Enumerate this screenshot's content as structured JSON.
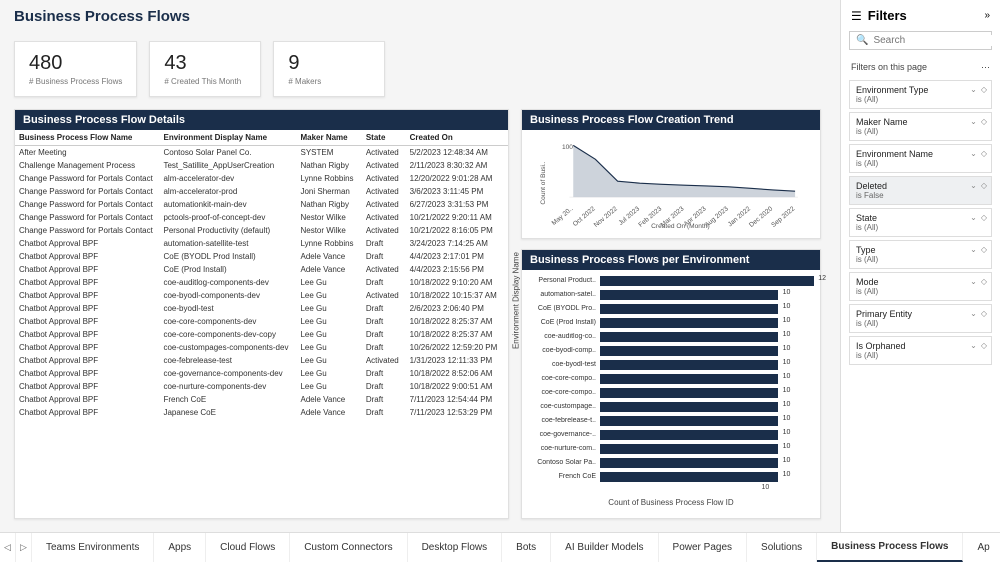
{
  "page_title": "Business Process Flows",
  "kpis": [
    {
      "value": "480",
      "label": "# Business Process Flows"
    },
    {
      "value": "43",
      "label": "# Created This Month"
    },
    {
      "value": "9",
      "label": "# Makers"
    }
  ],
  "details": {
    "title": "Business Process Flow Details",
    "columns": [
      "Business Process Flow Name",
      "Environment Display Name",
      "Maker Name",
      "State",
      "Created On"
    ],
    "rows": [
      [
        "After Meeting",
        "Contoso Solar Panel Co.",
        "SYSTEM",
        "Activated",
        "5/2/2023 12:48:34 AM"
      ],
      [
        "Challenge Management Process",
        "Test_Satillite_AppUserCreation",
        "Nathan Rigby",
        "Activated",
        "2/11/2023 8:30:32 AM"
      ],
      [
        "Change Password for Portals Contact",
        "alm-accelerator-dev",
        "Lynne Robbins",
        "Activated",
        "12/20/2022 9:01:28 AM"
      ],
      [
        "Change Password for Portals Contact",
        "alm-accelerator-prod",
        "Joni Sherman",
        "Activated",
        "3/6/2023 3:11:45 PM"
      ],
      [
        "Change Password for Portals Contact",
        "automationkit-main-dev",
        "Nathan Rigby",
        "Activated",
        "6/27/2023 3:31:53 PM"
      ],
      [
        "Change Password for Portals Contact",
        "pctools-proof-of-concept-dev",
        "Nestor Wilke",
        "Activated",
        "10/21/2022 9:20:11 AM"
      ],
      [
        "Change Password for Portals Contact",
        "Personal Productivity (default)",
        "Nestor Wilke",
        "Activated",
        "10/21/2022 8:16:05 PM"
      ],
      [
        "Chatbot Approval BPF",
        "automation-satellite-test",
        "Lynne Robbins",
        "Draft",
        "3/24/2023 7:14:25 AM"
      ],
      [
        "Chatbot Approval BPF",
        "CoE (BYODL Prod Install)",
        "Adele Vance",
        "Draft",
        "4/4/2023 2:17:01 PM"
      ],
      [
        "Chatbot Approval BPF",
        "CoE (Prod Install)",
        "Adele Vance",
        "Activated",
        "4/4/2023 2:15:56 PM"
      ],
      [
        "Chatbot Approval BPF",
        "coe-auditlog-components-dev",
        "Lee Gu",
        "Draft",
        "10/18/2022 9:10:20 AM"
      ],
      [
        "Chatbot Approval BPF",
        "coe-byodl-components-dev",
        "Lee Gu",
        "Activated",
        "10/18/2022 10:15:37 AM"
      ],
      [
        "Chatbot Approval BPF",
        "coe-byodl-test",
        "Lee Gu",
        "Draft",
        "2/6/2023 2:06:40 PM"
      ],
      [
        "Chatbot Approval BPF",
        "coe-core-components-dev",
        "Lee Gu",
        "Draft",
        "10/18/2022 8:25:37 AM"
      ],
      [
        "Chatbot Approval BPF",
        "coe-core-components-dev-copy",
        "Lee Gu",
        "Draft",
        "10/18/2022 8:25:37 AM"
      ],
      [
        "Chatbot Approval BPF",
        "coe-custompages-components-dev",
        "Lee Gu",
        "Draft",
        "10/26/2022 12:59:20 PM"
      ],
      [
        "Chatbot Approval BPF",
        "coe-febrelease-test",
        "Lee Gu",
        "Activated",
        "1/31/2023 12:11:33 PM"
      ],
      [
        "Chatbot Approval BPF",
        "coe-governance-components-dev",
        "Lee Gu",
        "Draft",
        "10/18/2022 8:52:06 AM"
      ],
      [
        "Chatbot Approval BPF",
        "coe-nurture-components-dev",
        "Lee Gu",
        "Draft",
        "10/18/2022 9:00:51 AM"
      ],
      [
        "Chatbot Approval BPF",
        "French CoE",
        "Adele Vance",
        "Draft",
        "7/11/2023 12:54:44 PM"
      ],
      [
        "Chatbot Approval BPF",
        "Japanese CoE",
        "Adele Vance",
        "Draft",
        "7/11/2023 12:53:29 PM"
      ]
    ]
  },
  "trend": {
    "title": "Business Process Flow Creation Trend",
    "y_label": "Count of Busi..",
    "y_max": 100,
    "x_label": "Created On (Month)",
    "x_ticks": [
      "May 20..",
      "Oct 2022",
      "Nov 2022",
      "Jul 2023",
      "Feb 2023",
      "Mar 2023",
      "Apr 2023",
      "Aug 2023",
      "Jan 2022",
      "Dec 2020",
      "Sep 2022"
    ],
    "values": [
      130,
      95,
      40,
      35,
      32,
      30,
      28,
      26,
      22,
      18,
      15
    ],
    "line_color": "#1a2e4a",
    "fill_color": "#b8c0cc"
  },
  "env_chart": {
    "title": "Business Process Flows per Environment",
    "y_label": "Environment Display Name",
    "x_label": "Count of Business Process Flow ID",
    "x_tick": "10",
    "bars": [
      {
        "label": "Personal Product..",
        "value": 12,
        "max": 12
      },
      {
        "label": "automation-satel..",
        "value": 10,
        "max": 12
      },
      {
        "label": "CoE (BYODL Pro..",
        "value": 10,
        "max": 12
      },
      {
        "label": "CoE (Prod Install)",
        "value": 10,
        "max": 12
      },
      {
        "label": "coe-auditlog-co..",
        "value": 10,
        "max": 12
      },
      {
        "label": "coe-byodl-comp..",
        "value": 10,
        "max": 12
      },
      {
        "label": "coe-byodl-test",
        "value": 10,
        "max": 12
      },
      {
        "label": "coe-core-compo..",
        "value": 10,
        "max": 12
      },
      {
        "label": "coe-core-compo..",
        "value": 10,
        "max": 12
      },
      {
        "label": "coe-custompage..",
        "value": 10,
        "max": 12
      },
      {
        "label": "coe-febrelease-t..",
        "value": 10,
        "max": 12
      },
      {
        "label": "coe-governance-..",
        "value": 10,
        "max": 12
      },
      {
        "label": "coe-nurture-com..",
        "value": 10,
        "max": 12
      },
      {
        "label": "Contoso Solar Pa..",
        "value": 10,
        "max": 12
      },
      {
        "label": "French CoE",
        "value": 10,
        "max": 12
      }
    ],
    "bar_color": "#1a2e4a"
  },
  "filters": {
    "title": "Filters",
    "search_placeholder": "Search",
    "section_label": "Filters on this page",
    "items": [
      {
        "name": "Environment Type",
        "val": "is (All)",
        "active": false
      },
      {
        "name": "Maker Name",
        "val": "is (All)",
        "active": false
      },
      {
        "name": "Environment Name",
        "val": "is (All)",
        "active": false
      },
      {
        "name": "Deleted",
        "val": "is False",
        "active": true
      },
      {
        "name": "State",
        "val": "is (All)",
        "active": false
      },
      {
        "name": "Type",
        "val": "is (All)",
        "active": false
      },
      {
        "name": "Mode",
        "val": "is (All)",
        "active": false
      },
      {
        "name": "Primary Entity",
        "val": "is (All)",
        "active": false
      },
      {
        "name": "Is Orphaned",
        "val": "is (All)",
        "active": false
      }
    ]
  },
  "tabs": [
    "Teams Environments",
    "Apps",
    "Cloud Flows",
    "Custom Connectors",
    "Desktop Flows",
    "Bots",
    "AI Builder Models",
    "Power Pages",
    "Solutions",
    "Business Process Flows",
    "Ap"
  ],
  "active_tab": 9
}
